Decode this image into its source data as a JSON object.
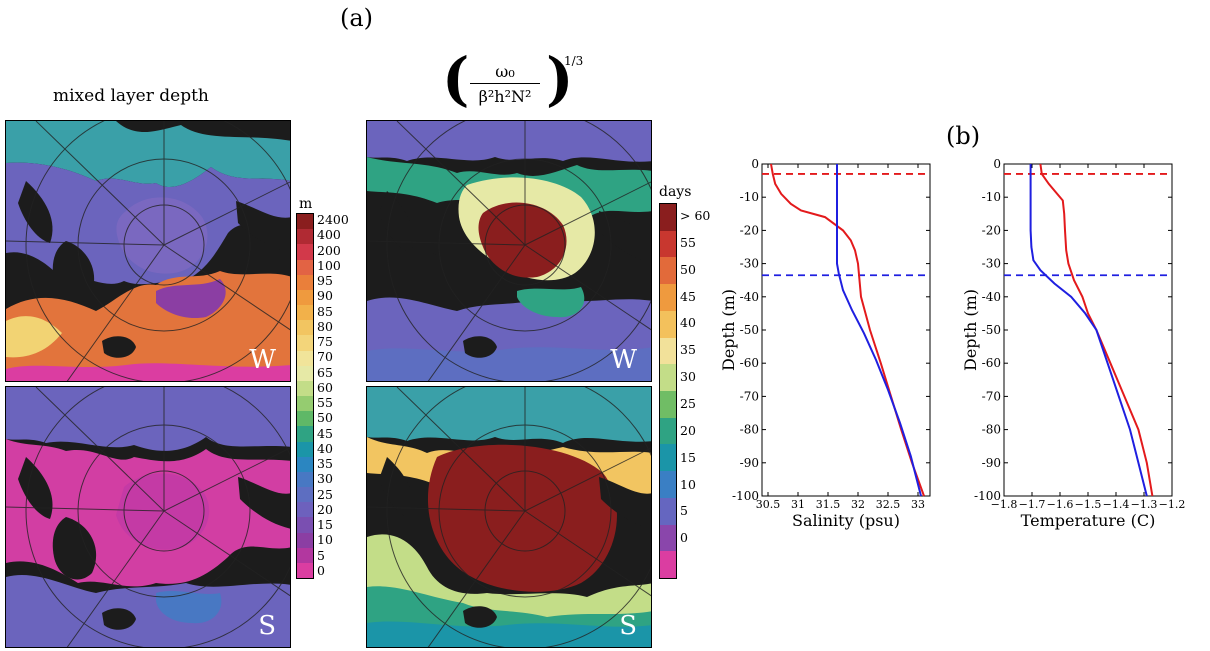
{
  "panel_labels": {
    "a": "(a)",
    "b": "(b)"
  },
  "maps": {
    "mld_title": "mixed layer depth",
    "formula": {
      "numerator": "ω₀",
      "denominator": "β²h²N²",
      "exponent": "1/3"
    },
    "tags": {
      "winter": "W",
      "summer": "S"
    }
  },
  "colorbars": {
    "mld": {
      "unit": "m",
      "ticks": [
        "2400",
        "400",
        "200",
        "100",
        "95",
        "90",
        "85",
        "80",
        "75",
        "70",
        "65",
        "60",
        "55",
        "50",
        "45",
        "40",
        "35",
        "30",
        "25",
        "20",
        "15",
        "10",
        "5",
        "0"
      ],
      "colors": [
        "#8a1e1e",
        "#b02a33",
        "#d2394a",
        "#e26344",
        "#ea7f3a",
        "#ef9a3e",
        "#f2b14a",
        "#f2c561",
        "#f3d57a",
        "#f1e49a",
        "#e6e9a6",
        "#c3dd88",
        "#95cc70",
        "#5fb867",
        "#2fa383",
        "#1b95a8",
        "#2b86c1",
        "#4878c3",
        "#5d6ec1",
        "#6d61bd",
        "#7a4fb1",
        "#8b3ea3",
        "#b2379f",
        "#db3da1"
      ]
    },
    "growth": {
      "unit": "days",
      "ticks": [
        "> 60",
        "55",
        "50",
        "45",
        "40",
        "35",
        "30",
        "25",
        "20",
        "15",
        "10",
        "5",
        "0"
      ],
      "colors": [
        "#8a1e1e",
        "#c8372f",
        "#e26a3a",
        "#ef9a3e",
        "#f3c15c",
        "#f2e19a",
        "#c3dd88",
        "#70bd65",
        "#2fa383",
        "#1b95a8",
        "#3a7fc4",
        "#6566c0",
        "#8a46ab",
        "#db3da1"
      ]
    }
  },
  "chart_data": [
    {
      "type": "line",
      "xlabel": "Salinity (psu)",
      "ylabel": "Depth (m)",
      "xlim": [
        30.4,
        33.2
      ],
      "ylim": [
        -100,
        0
      ],
      "xticks": [
        30.5,
        31,
        31.5,
        32,
        32.5,
        33
      ],
      "xtick_labels": [
        "30.5",
        "31",
        "31.5",
        "32",
        "32.5",
        "33"
      ],
      "yticks": [
        0,
        -10,
        -20,
        -30,
        -40,
        -50,
        -60,
        -70,
        -80,
        -90,
        -100
      ],
      "series": [
        {
          "color": "#e31a1c",
          "points": [
            [
              30.55,
              0
            ],
            [
              30.58,
              -3
            ],
            [
              30.62,
              -6
            ],
            [
              30.72,
              -9
            ],
            [
              30.88,
              -12
            ],
            [
              31.05,
              -14
            ],
            [
              31.45,
              -16
            ],
            [
              31.75,
              -20
            ],
            [
              31.88,
              -23
            ],
            [
              31.95,
              -26
            ],
            [
              32.0,
              -30
            ],
            [
              32.05,
              -40
            ],
            [
              32.2,
              -50
            ],
            [
              32.38,
              -60
            ],
            [
              32.55,
              -70
            ],
            [
              32.72,
              -80
            ],
            [
              32.9,
              -90
            ],
            [
              33.1,
              -100
            ]
          ]
        },
        {
          "color": "#1f1fe0",
          "points": [
            [
              31.65,
              0
            ],
            [
              31.65,
              -10
            ],
            [
              31.65,
              -20
            ],
            [
              31.65,
              -30
            ],
            [
              31.68,
              -33
            ],
            [
              31.75,
              -38
            ],
            [
              31.9,
              -44
            ],
            [
              32.1,
              -51
            ],
            [
              32.3,
              -59
            ],
            [
              32.5,
              -68
            ],
            [
              32.7,
              -78
            ],
            [
              32.88,
              -88
            ],
            [
              33.05,
              -100
            ]
          ]
        }
      ],
      "hlines": [
        {
          "y": -3,
          "color": "#e31a1c"
        },
        {
          "y": -33.5,
          "color": "#1f1fe0"
        }
      ]
    },
    {
      "type": "line",
      "xlabel": "Temperature (C)",
      "ylabel": "Depth (m)",
      "xlim": [
        -1.8,
        -1.2
      ],
      "ylim": [
        -100,
        0
      ],
      "xticks": [
        -1.8,
        -1.7,
        -1.6,
        -1.5,
        -1.4,
        -1.3,
        -1.2
      ],
      "xtick_labels": [
        "−1.8",
        "−1.7",
        "−1.6",
        "−1.5",
        "−1.4",
        "−1.3",
        "−1.2"
      ],
      "yticks": [
        0,
        -10,
        -20,
        -30,
        -40,
        -50,
        -60,
        -70,
        -80,
        -90,
        -100
      ],
      "series": [
        {
          "color": "#e31a1c",
          "points": [
            [
              -1.67,
              0
            ],
            [
              -1.665,
              -3
            ],
            [
              -1.64,
              -6
            ],
            [
              -1.61,
              -9
            ],
            [
              -1.59,
              -11
            ],
            [
              -1.585,
              -15
            ],
            [
              -1.582,
              -20
            ],
            [
              -1.578,
              -26
            ],
            [
              -1.57,
              -30
            ],
            [
              -1.55,
              -35
            ],
            [
              -1.52,
              -40
            ],
            [
              -1.5,
              -45
            ],
            [
              -1.47,
              -50
            ],
            [
              -1.42,
              -60
            ],
            [
              -1.37,
              -70
            ],
            [
              -1.32,
              -80
            ],
            [
              -1.29,
              -90
            ],
            [
              -1.27,
              -100
            ]
          ]
        },
        {
          "color": "#1f1fe0",
          "points": [
            [
              -1.705,
              0
            ],
            [
              -1.705,
              -10
            ],
            [
              -1.705,
              -20
            ],
            [
              -1.702,
              -25
            ],
            [
              -1.695,
              -29
            ],
            [
              -1.67,
              -32
            ],
            [
              -1.62,
              -36
            ],
            [
              -1.56,
              -40
            ],
            [
              -1.51,
              -45
            ],
            [
              -1.47,
              -50
            ],
            [
              -1.43,
              -60
            ],
            [
              -1.39,
              -70
            ],
            [
              -1.35,
              -80
            ],
            [
              -1.32,
              -90
            ],
            [
              -1.29,
              -100
            ]
          ]
        }
      ],
      "hlines": [
        {
          "y": -3,
          "color": "#e31a1c"
        },
        {
          "y": -33.5,
          "color": "#1f1fe0"
        }
      ]
    }
  ]
}
